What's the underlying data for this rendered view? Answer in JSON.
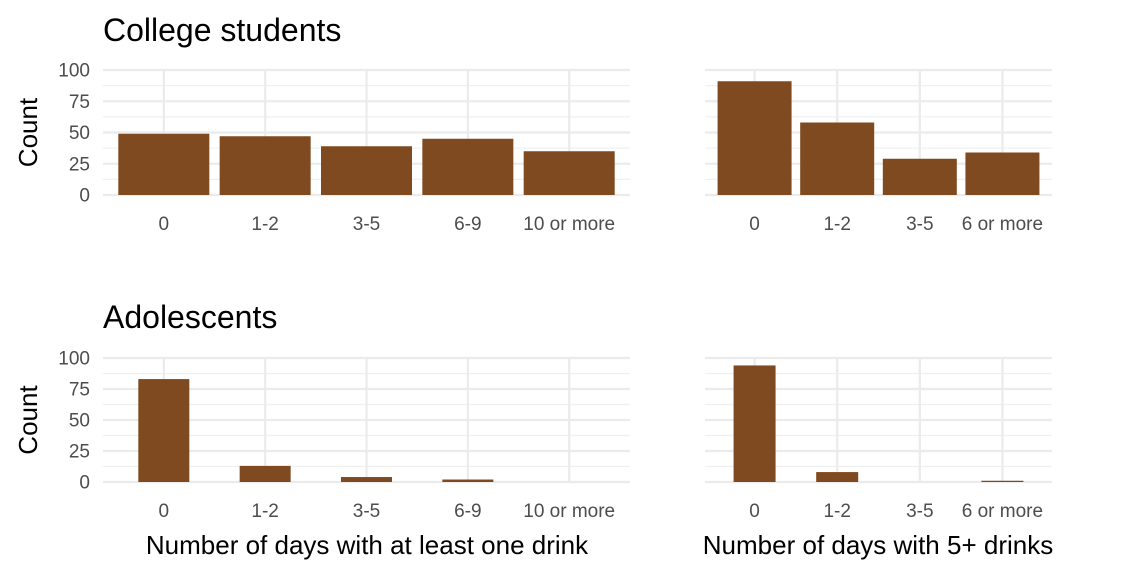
{
  "chart_data": [
    {
      "type": "bar",
      "title": "College students",
      "ylabel": "Count",
      "xlabel": "",
      "ylim": [
        0,
        100
      ],
      "yticks": [
        0,
        25,
        50,
        75,
        100
      ],
      "grid": true,
      "bar_color": "#7f4a1f",
      "categories": [
        "0",
        "1-2",
        "3-5",
        "6-9",
        "10 or more"
      ],
      "values": [
        49,
        47,
        39,
        45,
        35
      ]
    },
    {
      "type": "bar",
      "title": "",
      "ylabel": "",
      "xlabel": "",
      "ylim": [
        0,
        100
      ],
      "yticks": [
        0,
        25,
        50,
        75,
        100
      ],
      "grid": true,
      "bar_color": "#7f4a1f",
      "categories": [
        "0",
        "1-2",
        "3-5",
        "6 or more"
      ],
      "values": [
        91,
        58,
        29,
        34
      ]
    },
    {
      "type": "bar",
      "title": "Adolescents",
      "ylabel": "Count",
      "xlabel": "Number of days with at least one drink",
      "ylim": [
        0,
        100
      ],
      "yticks": [
        0,
        25,
        50,
        75,
        100
      ],
      "grid": true,
      "bar_color": "#7f4a1f",
      "categories": [
        "0",
        "1-2",
        "3-5",
        "6-9",
        "10 or more"
      ],
      "values": [
        83,
        13,
        4,
        2,
        0
      ]
    },
    {
      "type": "bar",
      "title": "",
      "ylabel": "",
      "xlabel": "Number of days with 5+ drinks",
      "ylim": [
        0,
        100
      ],
      "yticks": [
        0,
        25,
        50,
        75,
        100
      ],
      "grid": true,
      "bar_color": "#7f4a1f",
      "categories": [
        "0",
        "1-2",
        "3-5",
        "6 or more"
      ],
      "values": [
        94,
        8,
        0,
        1
      ]
    }
  ]
}
